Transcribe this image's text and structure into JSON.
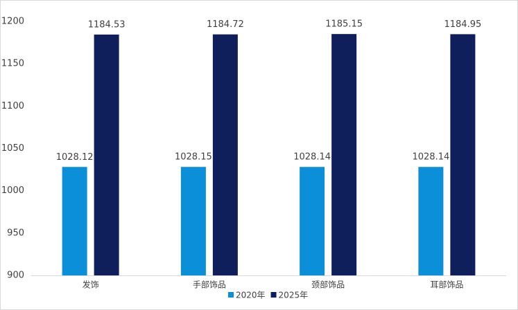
{
  "chart_data": {
    "type": "bar",
    "categories": [
      "发饰",
      "手部饰品",
      "颈部饰品",
      "耳部饰品"
    ],
    "series": [
      {
        "name": "2020年",
        "color": "#0b8fd8",
        "values": [
          1028.12,
          1028.15,
          1028.14,
          1028.14
        ]
      },
      {
        "name": "2025年",
        "color": "#0e1f5c",
        "values": [
          1184.53,
          1184.72,
          1185.15,
          1184.95
        ]
      }
    ],
    "ylim": [
      900,
      1200
    ],
    "yticks": [
      900,
      950,
      1000,
      1050,
      1100,
      1150,
      1200
    ],
    "grid": false,
    "legend": "bottom"
  }
}
